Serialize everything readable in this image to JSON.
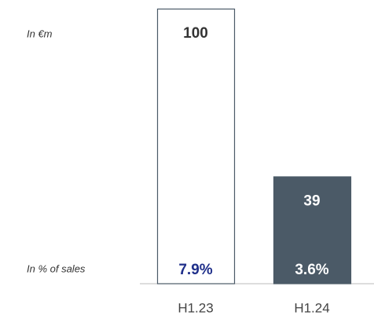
{
  "chart_data": {
    "type": "bar",
    "annotations": [
      "In €m",
      "In % of sales"
    ],
    "categories": [
      "H1.23",
      "H1.24"
    ],
    "values": [
      100,
      39
    ],
    "colors": [
      "#ffffff",
      "#4b5a67"
    ],
    "edge_color": "#4b5a67",
    "label_colors": [
      "#333333",
      "#ffffff"
    ],
    "ylim": [
      0,
      100
    ],
    "sales_share": {
      "values": [
        7.9,
        3.6
      ],
      "value_labels": [
        "7.9%",
        "3.6%"
      ],
      "colors": [
        "#1f2f8a",
        "#ffffff"
      ]
    }
  }
}
